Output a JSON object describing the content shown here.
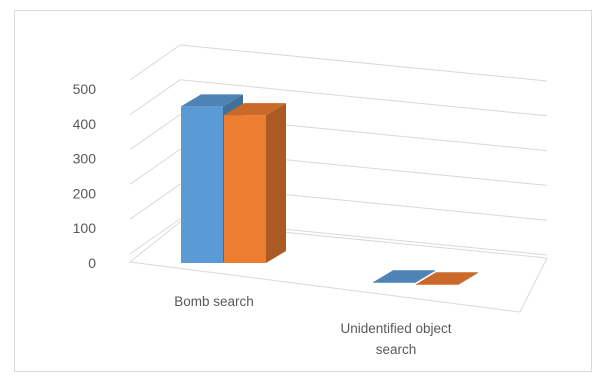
{
  "chart_data": {
    "type": "bar",
    "three_d": true,
    "categories": [
      "Bomb search",
      "Unidentified object search"
    ],
    "category_lines": [
      [
        "Bomb search"
      ],
      [
        "Unidentified object",
        "search"
      ]
    ],
    "series": [
      {
        "values": [
          450,
          2
        ],
        "color": "#5b9bd5"
      },
      {
        "values": [
          425,
          2
        ],
        "color": "#ed7d31"
      }
    ],
    "yticks": [
      "0",
      "100",
      "200",
      "300",
      "400",
      "500"
    ],
    "ylim": [
      0,
      500
    ],
    "grid": true,
    "legend": "none"
  }
}
